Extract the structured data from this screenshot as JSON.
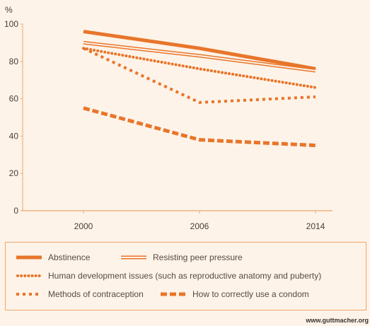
{
  "chart_data": {
    "type": "line",
    "unit_label": "%",
    "x": [
      "2000",
      "2006",
      "2014"
    ],
    "ylim": [
      0,
      100
    ],
    "yticks": [
      0,
      20,
      40,
      60,
      80,
      100
    ],
    "grid": false,
    "series": [
      {
        "name": "Abstinence",
        "style": "thick-solid",
        "values": [
          96,
          87,
          76
        ]
      },
      {
        "name": "Resisting peer pressure",
        "style": "double",
        "values": [
          90,
          83,
          75
        ]
      },
      {
        "name": "Human development issues (such as reproductive anatomy and puberty)",
        "style": "dotted",
        "values": [
          87,
          76,
          66
        ]
      },
      {
        "name": "Methods of contraception",
        "style": "dashed-short",
        "values": [
          87,
          58,
          61
        ]
      },
      {
        "name": "How to correctly use a condom",
        "style": "dashed-long",
        "values": [
          55,
          38,
          35
        ]
      }
    ]
  },
  "colors": {
    "line": "#e8752a",
    "axis": "#f0a66c",
    "bg": "#fdf3e8"
  },
  "source": "www.guttmacher.org"
}
